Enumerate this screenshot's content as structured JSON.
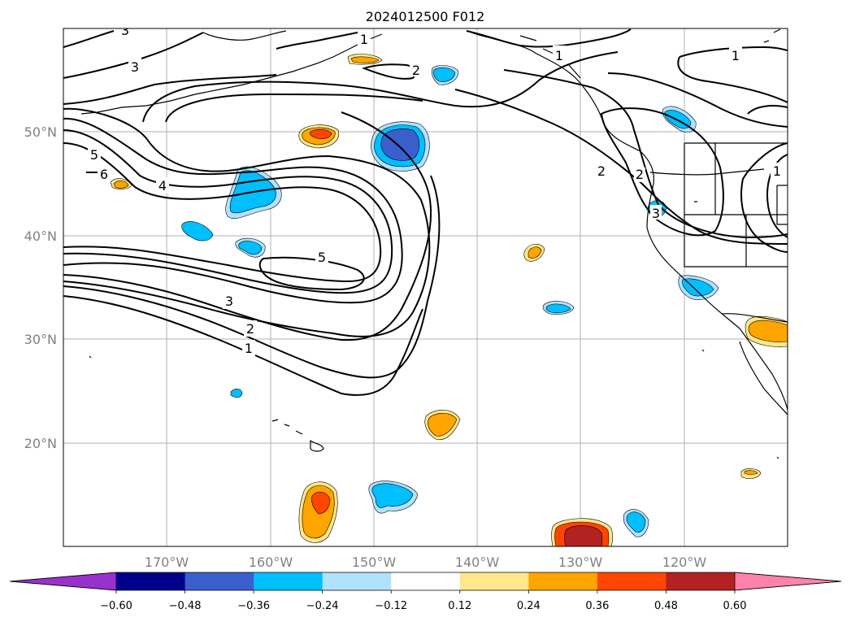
{
  "title": "2024012500 F012",
  "lat_labels": [
    "50°N",
    "40°N",
    "30°N",
    "20°N"
  ],
  "lon_labels": [
    "170°W",
    "160°W",
    "150°W",
    "140°W",
    "130°W",
    "120°W"
  ],
  "colorbar": {
    "ticks": [
      "−0.60",
      "−0.48",
      "−0.36",
      "−0.24",
      "−0.12",
      "0.12",
      "0.24",
      "0.36",
      "0.48",
      "0.60"
    ],
    "colors": [
      "#9932cc",
      "#00008b",
      "#3a5fcd",
      "#00bfff",
      "#b0e2ff",
      "#ffffff",
      "#ffe78a",
      "#ffa500",
      "#ff4500",
      "#b22222",
      "#ff82ab"
    ]
  },
  "contour_labels": [
    "1",
    "1",
    "1",
    "2",
    "3",
    "3",
    "5",
    "6",
    "4",
    "5",
    "3",
    "2",
    "1",
    "2",
    "1",
    "2",
    "3"
  ]
}
